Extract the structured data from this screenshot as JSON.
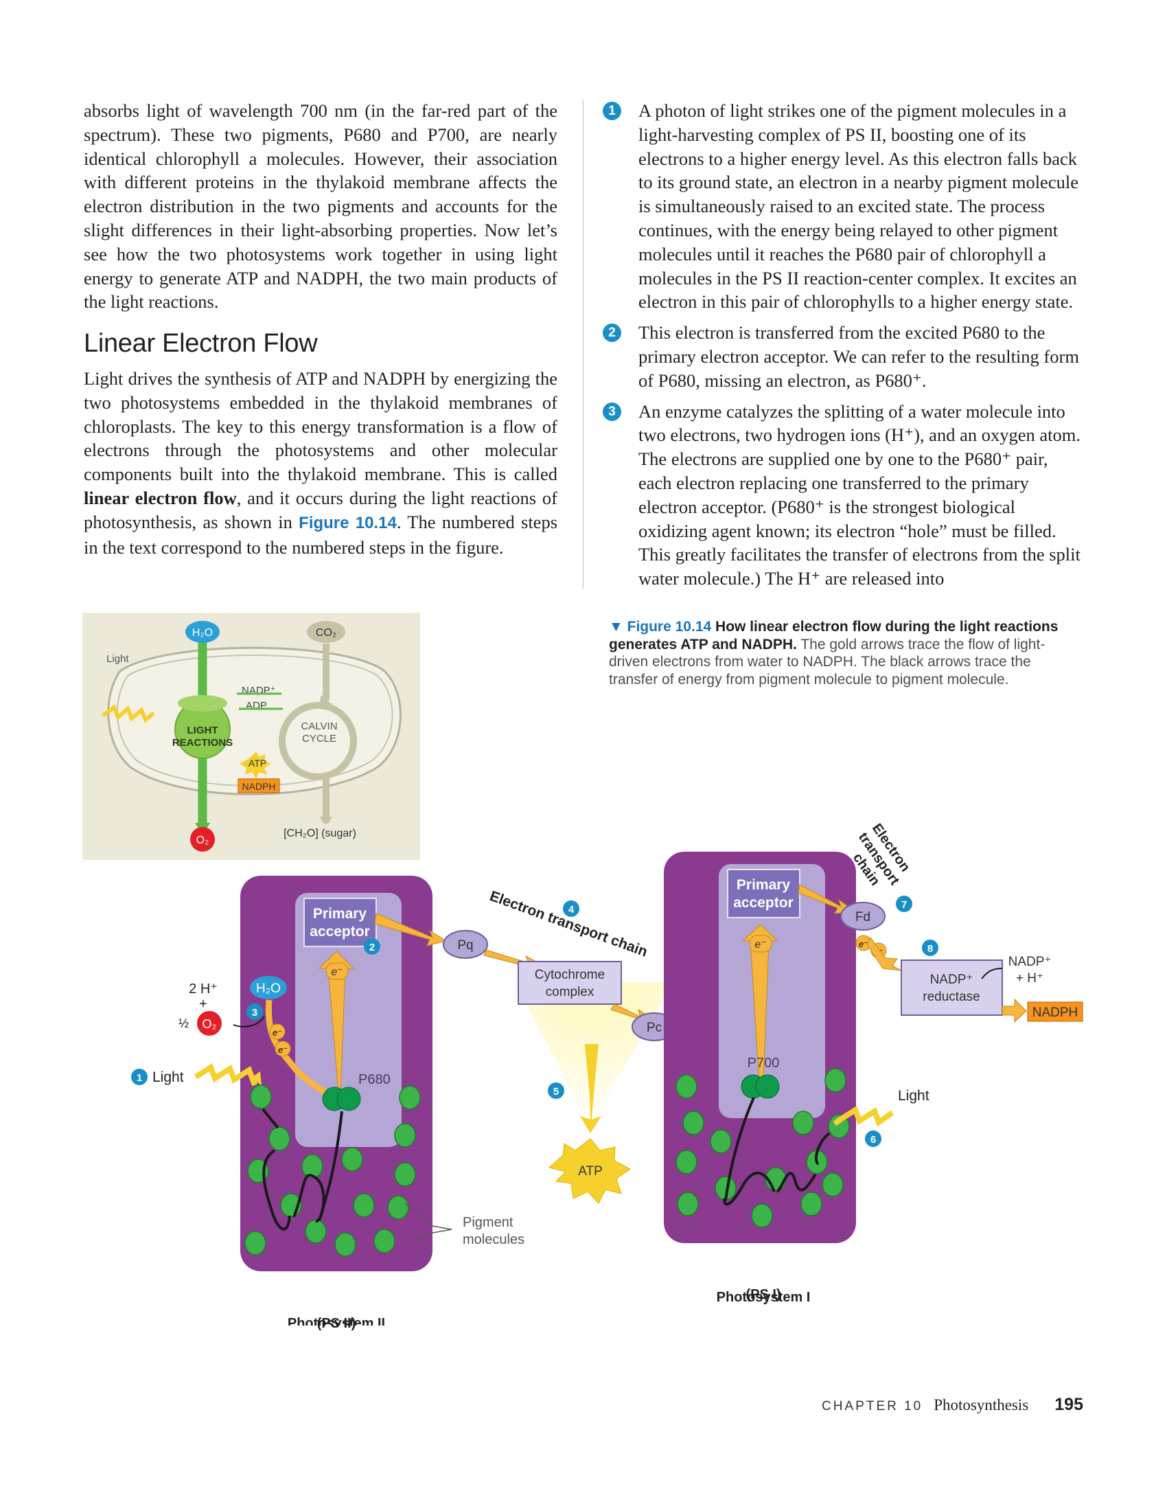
{
  "left_column": {
    "p1": "absorbs light of wavelength 700 nm (in the far-red part of the spectrum). These two pigments, P680 and P700, are nearly identical chlorophyll a molecules. However, their association with different proteins in the thylakoid membrane affects the electron distribution in the two pigments and accounts for the slight differences in their light-absorbing properties. Now let’s see how the two photosystems work together in using light energy to generate ATP and NADPH, the two main products of the light reactions.",
    "section_heading": "Linear Electron Flow",
    "p2_before": "Light drives the synthesis of ATP and NADPH by energizing the two photosystems embedded in the thylakoid membranes of chloroplasts. The key to this energy transformation is a flow of electrons through the photosystems and other molecular components built into the thylakoid membrane. This is called ",
    "p2_bold": "linear electron flow",
    "p2_mid": ", and it occurs during the light reactions of photosynthesis, as shown in ",
    "p2_figref": "Figure 10.14",
    "p2_after": ". The numbered steps in the text correspond to the numbered steps in the figure."
  },
  "right_column": {
    "steps": [
      {
        "num": "1",
        "text": "A photon of light strikes one of the pigment molecules in a light-harvesting complex of PS II, boosting one of its electrons to a higher energy level. As this electron falls back to its ground state, an electron in a nearby pigment molecule is simultaneously raised to an excited state. The process continues, with the energy being relayed to other pigment molecules until it reaches the P680 pair of chlorophyll a molecules in the PS II reaction-center complex. It excites an electron in this pair of chlorophylls to a higher energy state."
      },
      {
        "num": "2",
        "text": "This electron is transferred from the excited P680 to the primary electron acceptor. We can refer to the resulting form of P680, missing an electron, as P680⁺."
      },
      {
        "num": "3",
        "text": "An enzyme catalyzes the splitting of a water molecule into two electrons, two hydrogen ions (H⁺), and an oxygen atom. The electrons are supplied one by one to the P680⁺ pair, each electron replacing one transferred to the primary electron acceptor. (P680⁺ is the strongest biological oxidizing agent known; its electron “hole” must be filled. This greatly facilitates the transfer of electrons from the split water molecule.) The H⁺ are released into"
      }
    ]
  },
  "caption": {
    "label": "▼ Figure 10.14",
    "title": "How linear electron flow during the light reactions generates ATP and NADPH.",
    "body": "The gold arrows trace the flow of light-driven electrons from water to NADPH. The black arrows trace the transfer of energy from pigment molecule to pigment molecule."
  },
  "inset": {
    "h2o": "H₂O",
    "co2": "CO₂",
    "light": "Light",
    "nadp": "NADP⁺",
    "adp": "ADP",
    "light_reactions_1": "LIGHT",
    "light_reactions_2": "REACTIONS",
    "calvin_1": "CALVIN",
    "calvin_2": "CYCLE",
    "atp": "ATP",
    "nadph": "NADPH",
    "o2": "O₂",
    "sugar": "[CH₂O] (sugar)"
  },
  "diagram": {
    "ps2_label_1": "Photosystem II",
    "ps2_label_2": "(PS II)",
    "ps1_label_1": "Photosystem I",
    "ps1_label_2": "(PS I)",
    "primary_1": "Primary",
    "primary_2": "acceptor",
    "electron": "e⁻",
    "h2o": "H₂O",
    "two_h": "2 H⁺",
    "plus": "+",
    "half": "½",
    "o2": "O₂",
    "light": "Light",
    "p680": "P680",
    "p700": "P700",
    "pq": "Pq",
    "pc": "Pc",
    "fd": "Fd",
    "cyto_1": "Cytochrome",
    "cyto_2": "complex",
    "etc": "Electron transport chain",
    "etc_1": "Electron",
    "etc_2": "transport",
    "etc_3": "chain",
    "atp": "ATP",
    "pigment_1": "Pigment",
    "pigment_2": "molecules",
    "nadp_red_1": "NADP⁺",
    "nadp_red_2": "reductase",
    "nadp_in_1": "NADP⁺",
    "nadp_in_2": "+ H⁺",
    "nadph": "NADPH",
    "steps": [
      "1",
      "2",
      "3",
      "4",
      "5",
      "6",
      "7",
      "8"
    ]
  },
  "footer": {
    "chapter": "CHAPTER 10",
    "title": "Photosynthesis",
    "page": "195"
  },
  "colors": {
    "purple": "#8b3b8f",
    "lavender": "#b4a7d6",
    "acceptor": "#7e6fba",
    "gold": "#f6b53c",
    "step_blue": "#1a8fc6",
    "green": "#3cb44a",
    "nadph_orange": "#f7941d",
    "o2_red": "#e32028",
    "h2o_blue": "#2a9fd8"
  }
}
